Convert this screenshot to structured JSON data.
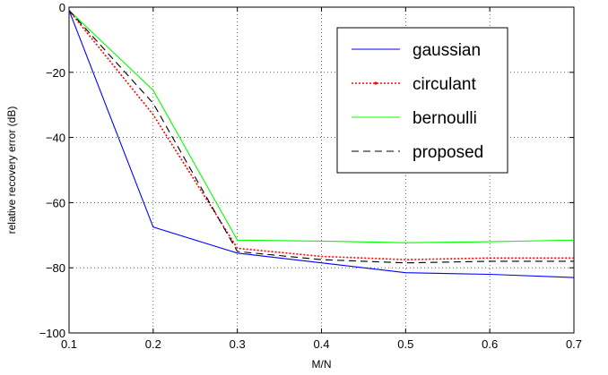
{
  "chart_data": {
    "type": "line",
    "xlabel": "M/N",
    "ylabel": "relative recovery error (dB)",
    "xlim": [
      0.1,
      0.7
    ],
    "ylim": [
      -100,
      0
    ],
    "xticks": [
      0.1,
      0.2,
      0.3,
      0.4,
      0.5,
      0.6,
      0.7
    ],
    "yticks": [
      -100,
      -80,
      -60,
      -40,
      -20,
      0
    ],
    "xtick_labels": [
      "0.1",
      "0.2",
      "0.3",
      "0.4",
      "0.5",
      "0.6",
      "0.7"
    ],
    "ytick_labels": [
      "−100",
      "−80",
      "−60",
      "−40",
      "−20",
      "0"
    ],
    "grid": true,
    "legend_position": "top-right",
    "x": [
      0.1,
      0.2,
      0.3,
      0.4,
      0.5,
      0.6,
      0.7
    ],
    "series": [
      {
        "name": "gaussian",
        "color": "#0000ff",
        "style": "solid",
        "values": [
          -1,
          -67.5,
          -75.5,
          -78.5,
          -81.5,
          -82,
          -83
        ]
      },
      {
        "name": "circulant",
        "color": "#ff0000",
        "style": "dotted",
        "values": [
          -1,
          -33,
          -74,
          -76.5,
          -77.5,
          -77,
          -77
        ]
      },
      {
        "name": "bernoulli",
        "color": "#00ff00",
        "style": "solid",
        "values": [
          -1,
          -25.5,
          -71.5,
          -71.8,
          -72.3,
          -72,
          -71.5
        ]
      },
      {
        "name": "proposed",
        "color": "#000000",
        "style": "dashed",
        "values": [
          -1,
          -29.5,
          -75,
          -77.5,
          -78.5,
          -78,
          -78
        ]
      }
    ]
  }
}
